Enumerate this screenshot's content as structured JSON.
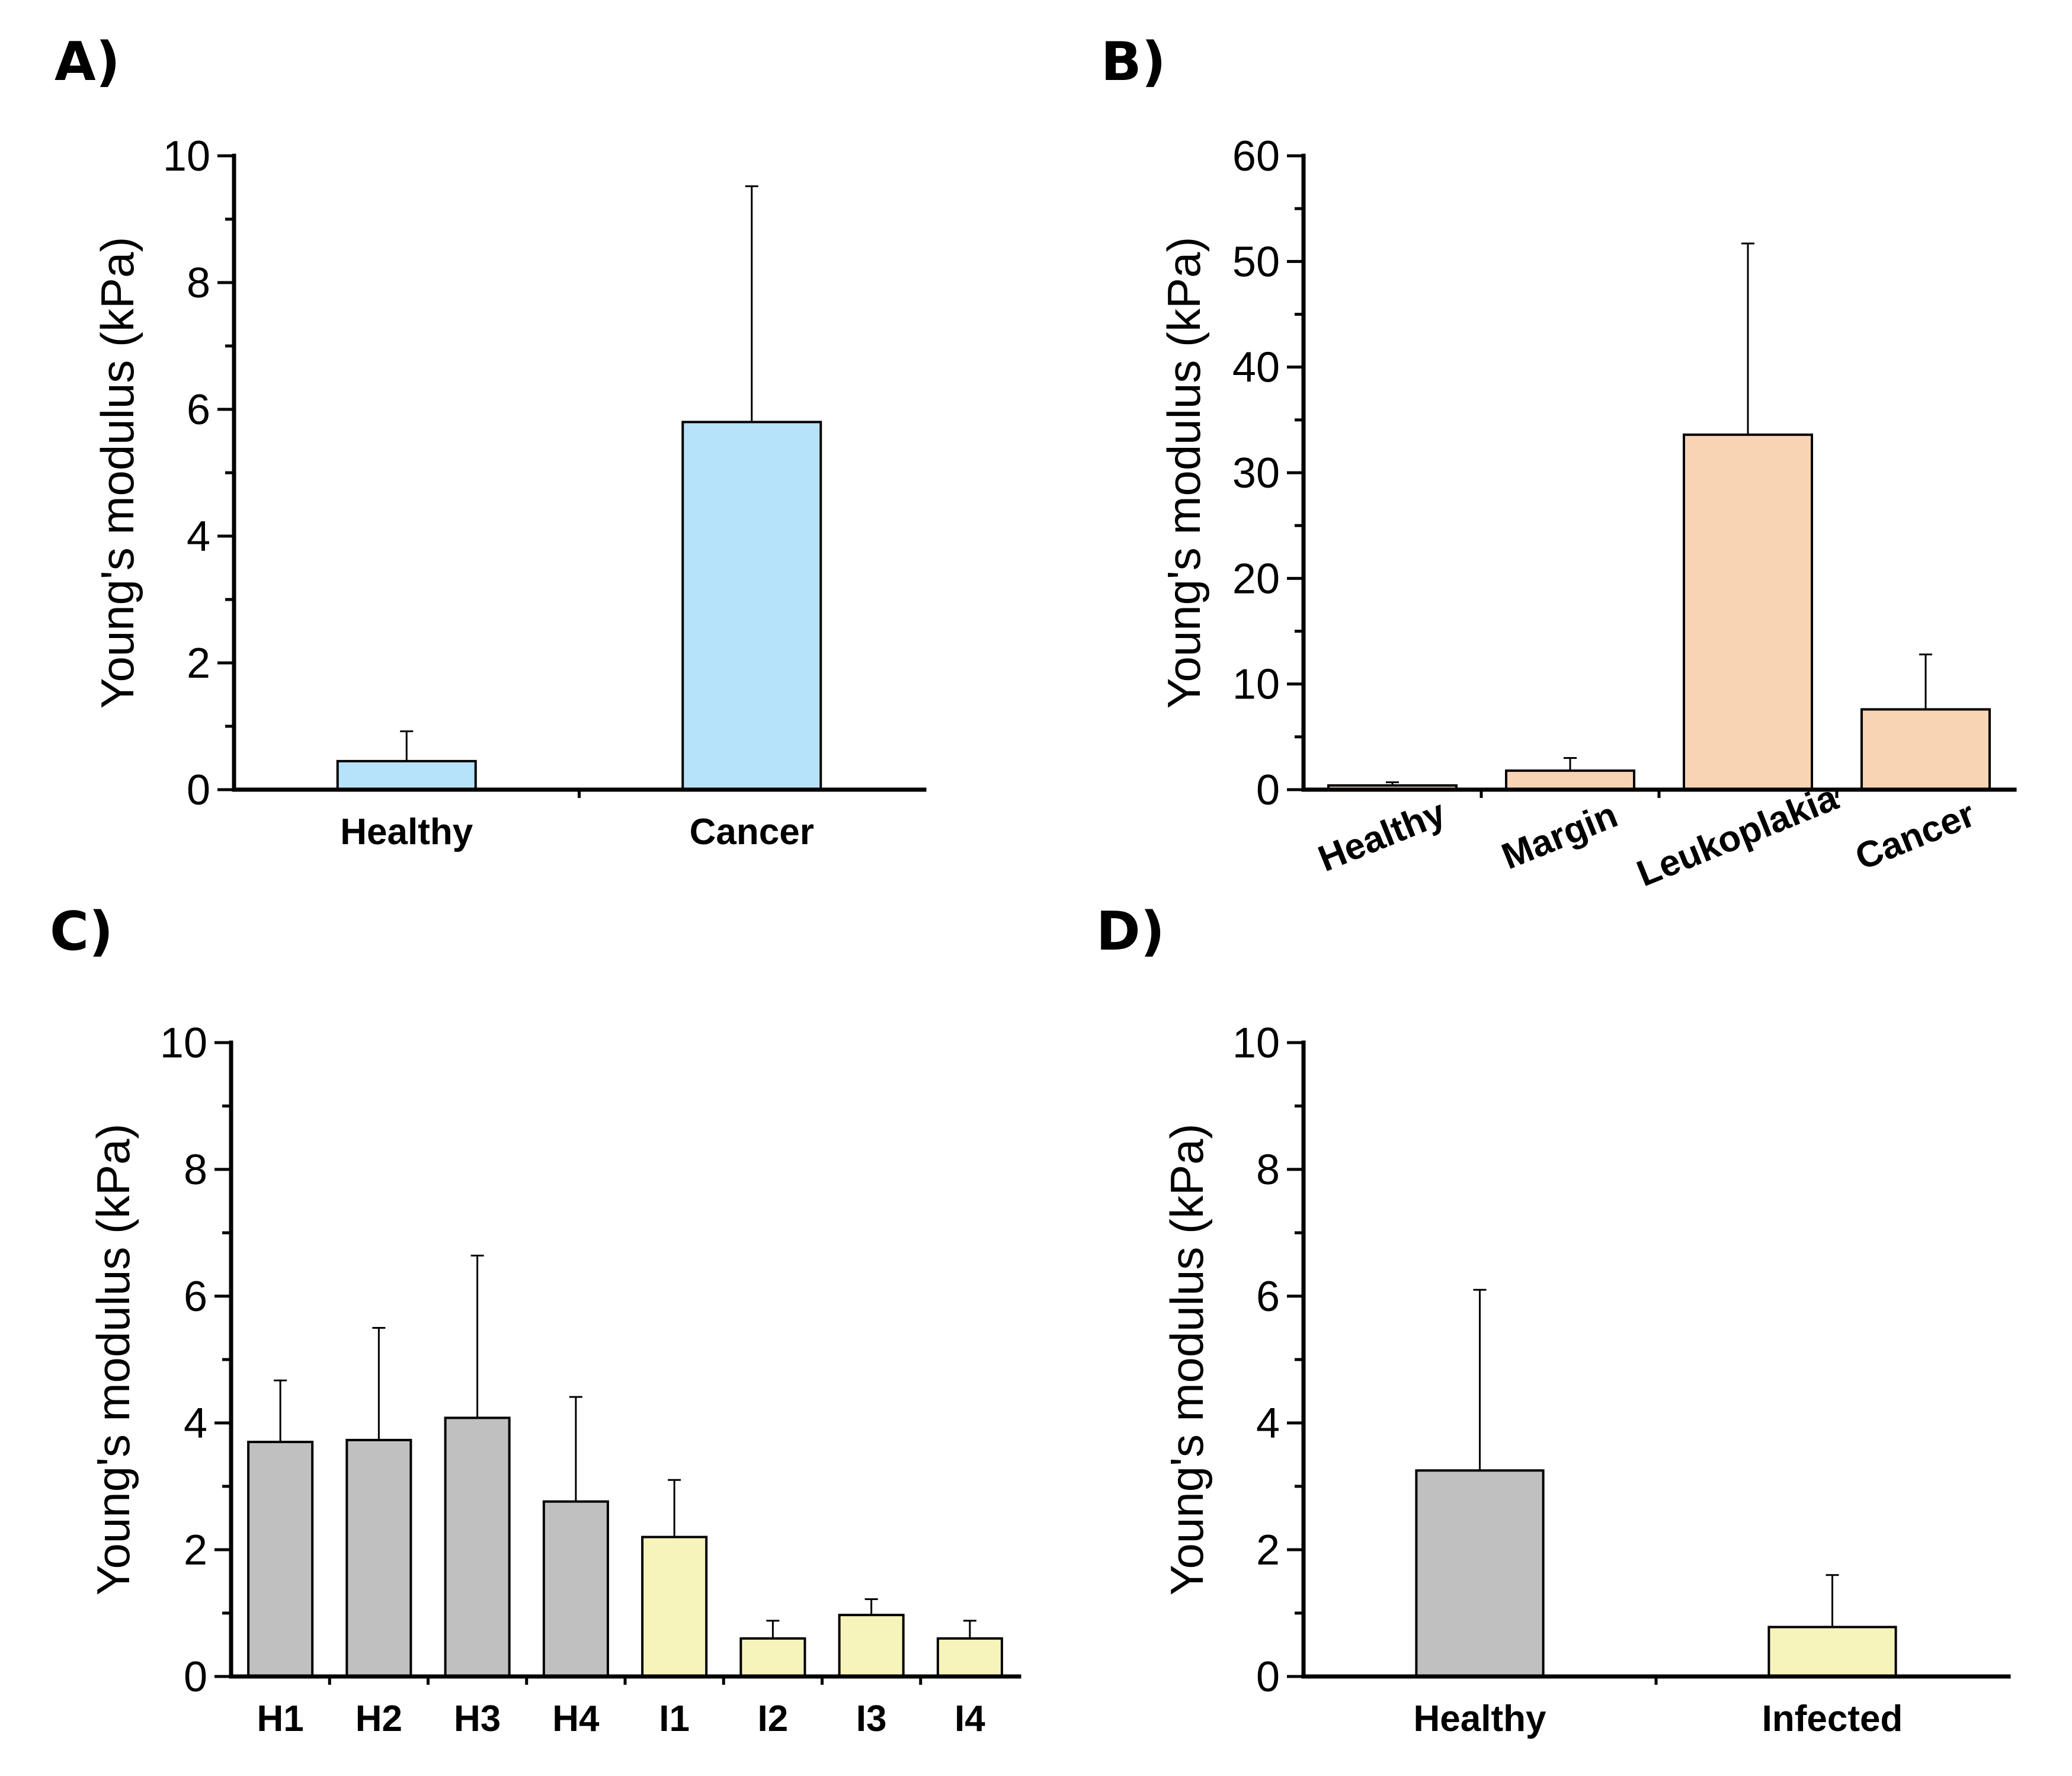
{
  "colors": {
    "blue": "#b7e3fa",
    "peach": "#f8d4b4",
    "grey": "#c0c0c0",
    "yellow": "#f7f4bb",
    "axis": "#000000"
  },
  "chart_data": [
    {
      "panel_label": "A)",
      "type": "bar",
      "ylabel": "Young's modulus (kPa)",
      "ylim": [
        0,
        10
      ],
      "yticks": [
        0,
        2,
        4,
        6,
        8,
        10
      ],
      "ytick_labels": [
        "0",
        "2",
        "4",
        "6",
        "8",
        "10"
      ],
      "categories": [
        "Healthy",
        "Cancer"
      ],
      "values": [
        0.45,
        5.8
      ],
      "errors": [
        0.47,
        3.72
      ],
      "bar_colors": [
        "blue",
        "blue"
      ],
      "label_rotation": 0
    },
    {
      "panel_label": "B)",
      "type": "bar",
      "ylabel": "Young's modulus (kPa)",
      "ylim": [
        0,
        60
      ],
      "yticks": [
        0,
        10,
        20,
        30,
        40,
        50,
        60
      ],
      "ytick_labels": [
        "0",
        "10",
        "20",
        "30",
        "40",
        "50",
        "60"
      ],
      "categories": [
        "Healthy",
        "Margin",
        "Leukoplakia",
        "Cancer"
      ],
      "values": [
        0.4,
        1.8,
        33.6,
        7.6
      ],
      "errors": [
        0.3,
        1.2,
        18.1,
        5.2
      ],
      "bar_colors": [
        "peach",
        "peach",
        "peach",
        "peach"
      ],
      "label_rotation": -22
    },
    {
      "panel_label": "C)",
      "type": "bar",
      "ylabel": "Young's modulus (kPa)",
      "ylim": [
        0,
        10
      ],
      "yticks": [
        0,
        2,
        4,
        6,
        8,
        10
      ],
      "ytick_labels": [
        "0",
        "2",
        "4",
        "6",
        "8",
        "10"
      ],
      "categories": [
        "H1",
        "H2",
        "H3",
        "H4",
        "I1",
        "I2",
        "I3",
        "I4"
      ],
      "values": [
        3.7,
        3.73,
        4.08,
        2.76,
        2.2,
        0.6,
        0.97,
        0.6
      ],
      "errors": [
        0.97,
        1.77,
        2.56,
        1.65,
        0.9,
        0.28,
        0.25,
        0.28
      ],
      "bar_colors": [
        "grey",
        "grey",
        "grey",
        "grey",
        "yellow",
        "yellow",
        "yellow",
        "yellow"
      ],
      "label_rotation": 0
    },
    {
      "panel_label": "D)",
      "type": "bar",
      "ylabel": "Young's modulus (kPa)",
      "ylim": [
        0,
        10
      ],
      "yticks": [
        0,
        2,
        4,
        6,
        8,
        10
      ],
      "ytick_labels": [
        "0",
        "2",
        "4",
        "6",
        "8",
        "10"
      ],
      "categories": [
        "Healthy",
        "Infected"
      ],
      "values": [
        3.25,
        0.78
      ],
      "errors": [
        2.85,
        0.82
      ],
      "bar_colors": [
        "grey",
        "yellow"
      ],
      "label_rotation": 0
    }
  ]
}
